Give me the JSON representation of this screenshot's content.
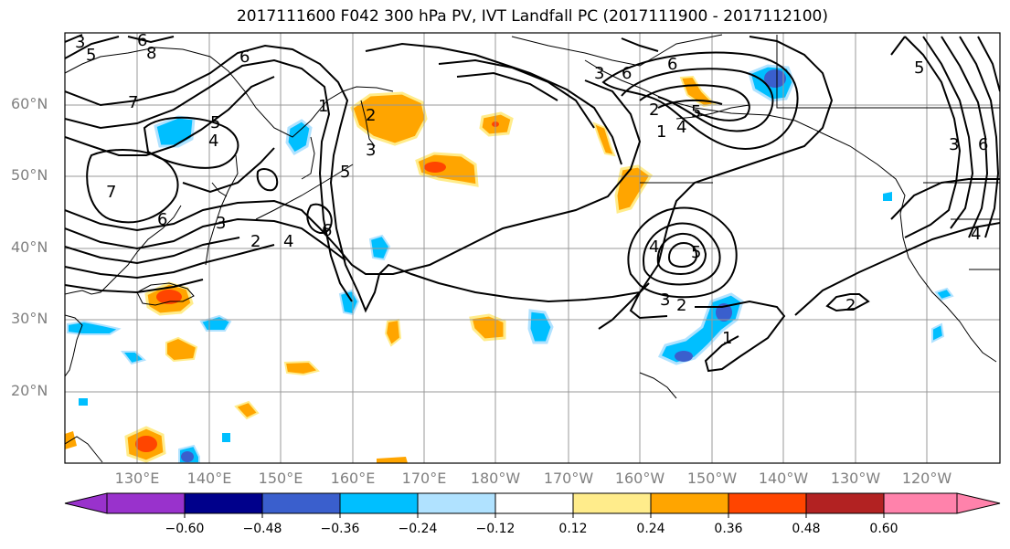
{
  "title": "2017111600 F042 300 hPa PV, IVT Landfall PC (2017111900 - 2017112100)",
  "lat_labels": [
    "60°N",
    "50°N",
    "40°N",
    "30°N",
    "20°N"
  ],
  "lon_labels": [
    "130°E",
    "140°E",
    "150°E",
    "160°E",
    "170°E",
    "180°W",
    "170°W",
    "160°W",
    "150°W",
    "140°W",
    "130°W",
    "120°W"
  ],
  "colorbar": {
    "ticks": [
      "−0.60",
      "−0.48",
      "−0.36",
      "−0.24",
      "−0.12",
      "0.12",
      "0.24",
      "0.36",
      "0.48",
      "0.60"
    ],
    "colors": [
      "#9932CC",
      "#00008B",
      "#3A5FCD",
      "#00BFFF",
      "#B0E2FF",
      "#FFFFFF",
      "#FFEC8B",
      "#FFA500",
      "#FF4500",
      "#B22222",
      "#FF82AB"
    ]
  },
  "contour_labels": [
    "7",
    "6",
    "5",
    "4",
    "3",
    "2",
    "1",
    "6",
    "5",
    "4",
    "3",
    "2",
    "7",
    "6",
    "4",
    "3",
    "2",
    "1",
    "5",
    "6",
    "6",
    "4",
    "5",
    "3",
    "2",
    "1",
    "2",
    "3",
    "6",
    "5",
    "4",
    "6",
    "8",
    "5",
    "3"
  ]
}
